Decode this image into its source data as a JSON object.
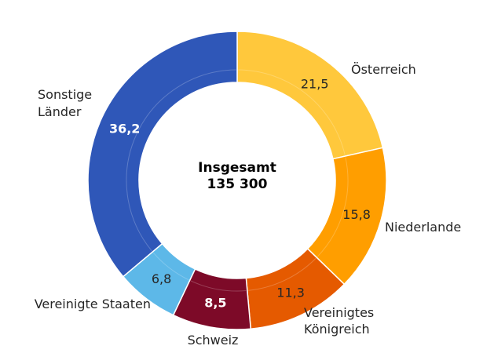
{
  "chart_data": {
    "type": "pie",
    "title": "",
    "center_label": "Insgesamt",
    "center_value": "135 300",
    "unit": "",
    "slices": [
      {
        "name": [
          "Österreich"
        ],
        "value": 21.5,
        "value_label": "21,5",
        "color": "#FFC83C",
        "value_color": "#262626"
      },
      {
        "name": [
          "Niederlande"
        ],
        "value": 15.8,
        "value_label": "15,8",
        "color": "#FF9E00",
        "value_color": "#262626"
      },
      {
        "name": [
          "Vereinigtes",
          "Königreich"
        ],
        "value": 11.3,
        "value_label": "11,3",
        "color": "#E55A00",
        "value_color": "#262626"
      },
      {
        "name": [
          "Schweiz"
        ],
        "value": 8.5,
        "value_label": "8,5",
        "color": "#7D0A28",
        "value_color": "#FFFFFF"
      },
      {
        "name": [
          "Vereinigte Staaten"
        ],
        "value": 6.8,
        "value_label": "6,8",
        "color": "#5DB8E8",
        "value_color": "#262626"
      },
      {
        "name": [
          "Sonstige",
          "Länder"
        ],
        "value": 36.2,
        "value_label": "36,2",
        "color": "#2F57B8",
        "value_color": "#FFFFFF"
      }
    ]
  }
}
